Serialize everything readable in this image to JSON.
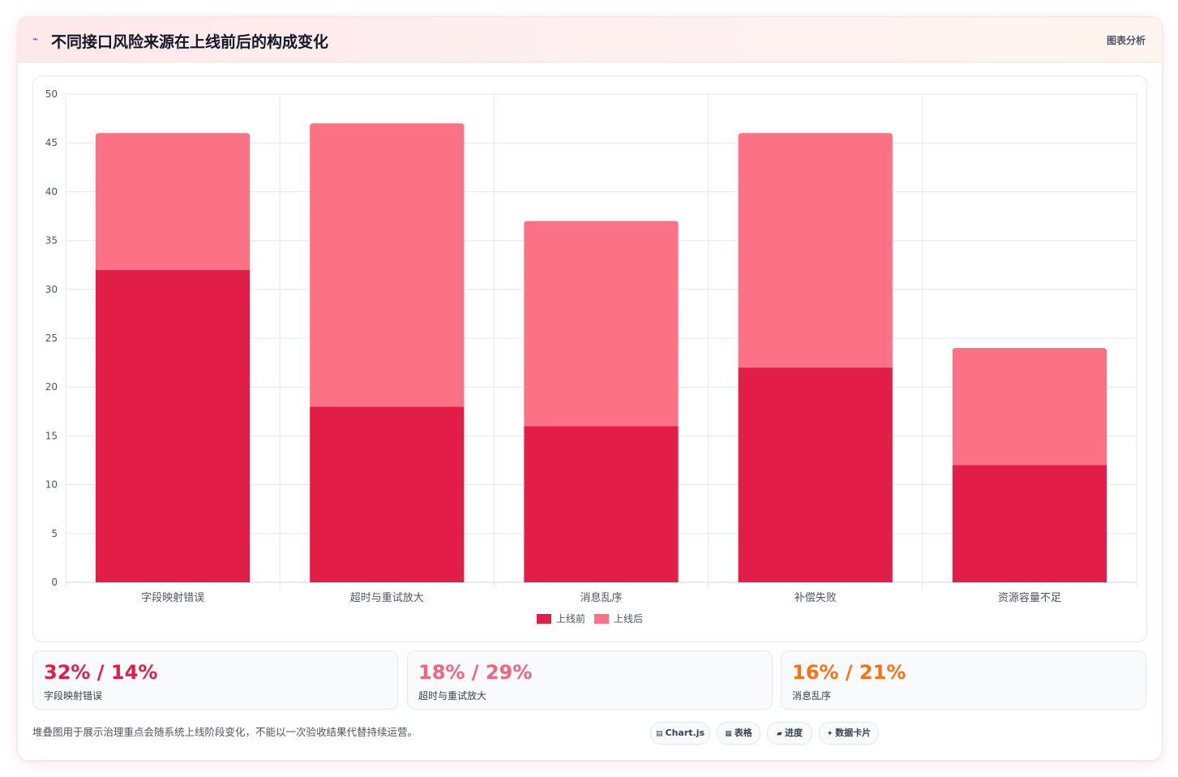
{
  "header": {
    "icon": "chart-line-icon",
    "title": "不同接口风险来源在上线前后的构成变化",
    "right_label": "图表分析"
  },
  "chart_data": {
    "type": "bar",
    "stacked": true,
    "categories": [
      "字段映射错误",
      "超时与重试放大",
      "消息乱序",
      "补偿失败",
      "资源容量不足"
    ],
    "series": [
      {
        "name": "上线前",
        "values": [
          32,
          18,
          16,
          22,
          12
        ],
        "color": "#e11d48"
      },
      {
        "name": "上线后",
        "values": [
          14,
          29,
          21,
          24,
          12
        ],
        "color": "#fb7185"
      }
    ],
    "ylim": [
      0,
      50
    ],
    "yticks": [
      0,
      5,
      10,
      15,
      20,
      25,
      30,
      35,
      40,
      45,
      50
    ],
    "grid": true,
    "legend": "bottom"
  },
  "stats": [
    {
      "value": "32% / 14%",
      "label": "字段映射错误",
      "color": "#e11d48"
    },
    {
      "value": "18% / 29%",
      "label": "超时与重试放大",
      "color": "#f06680"
    },
    {
      "value": "16% / 21%",
      "label": "消息乱序",
      "color": "#f97316"
    }
  ],
  "footer": {
    "note": "堆叠图用于展示治理重点会随系统上线阶段变化，不能以一次验收结果代替持续运营。",
    "tags": [
      {
        "icon": "▤",
        "label": "Chart.js"
      },
      {
        "icon": "▦",
        "label": "表格"
      },
      {
        "icon": "▰",
        "label": "进度"
      },
      {
        "icon": "✦",
        "label": "数据卡片"
      }
    ]
  }
}
